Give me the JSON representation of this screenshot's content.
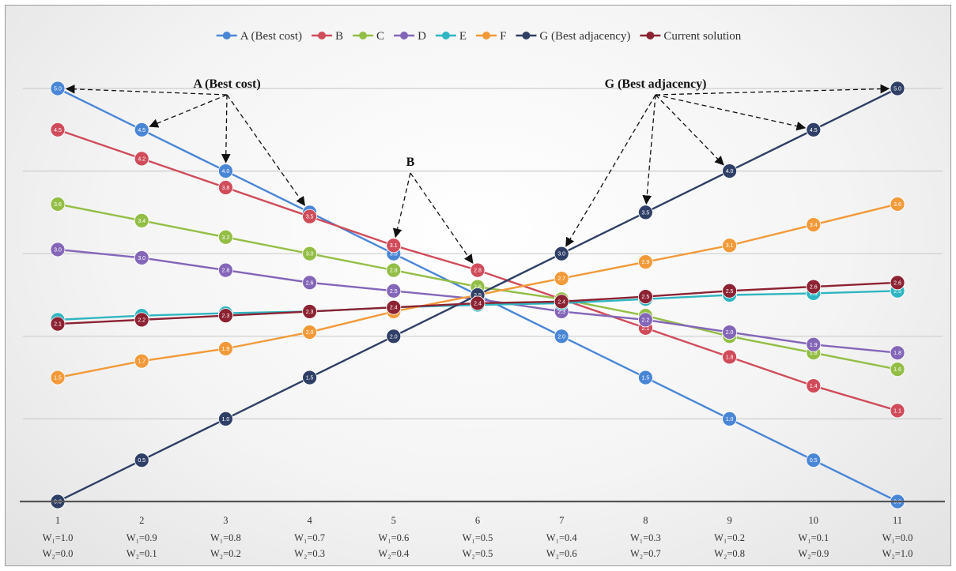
{
  "chart_data": {
    "type": "line",
    "title": "",
    "xlabel": "",
    "ylabel": "",
    "categories": [
      "1",
      "2",
      "3",
      "4",
      "5",
      "6",
      "7",
      "8",
      "9",
      "10",
      "11"
    ],
    "weights": [
      {
        "w1": "W₁=1.0",
        "w2": "W₂=0.0"
      },
      {
        "w1": "W₁=0.9",
        "w2": "W₂=0.1"
      },
      {
        "w1": "W₁=0.8",
        "w2": "W₂=0.2"
      },
      {
        "w1": "W₁=0.7",
        "w2": "W₂=0.3"
      },
      {
        "w1": "W₁=0.6",
        "w2": "W₂=0.4"
      },
      {
        "w1": "W₁=0.5",
        "w2": "W₂=0.5"
      },
      {
        "w1": "W₁=0.4",
        "w2": "W₂=0.6"
      },
      {
        "w1": "W₁=0.3",
        "w2": "W₂=0.7"
      },
      {
        "w1": "W₁=0.2",
        "w2": "W₂=0.8"
      },
      {
        "w1": "W₁=0.1",
        "w2": "W₂=0.9"
      },
      {
        "w1": "W₁=0.0",
        "w2": "W₂=1.0"
      }
    ],
    "ylim": [
      0,
      5
    ],
    "grid": true,
    "legend_position": "top",
    "series": [
      {
        "name": "A (Best cost)",
        "color": "#4a86d6",
        "values": [
          5.0,
          4.5,
          4.0,
          3.5,
          3.0,
          2.5,
          2.0,
          1.5,
          1.0,
          0.5,
          0.0
        ]
      },
      {
        "name": "B",
        "color": "#d04c5a",
        "values": [
          4.5,
          4.15,
          3.8,
          3.45,
          3.1,
          2.8,
          2.45,
          2.1,
          1.75,
          1.4,
          1.1
        ]
      },
      {
        "name": "C",
        "color": "#93be46",
        "values": [
          3.6,
          3.4,
          3.2,
          3.0,
          2.8,
          2.6,
          2.45,
          2.25,
          2.0,
          1.8,
          1.6
        ]
      },
      {
        "name": "D",
        "color": "#8466b8",
        "values": [
          3.05,
          2.95,
          2.8,
          2.65,
          2.55,
          2.45,
          2.3,
          2.2,
          2.05,
          1.9,
          1.8
        ]
      },
      {
        "name": "E",
        "color": "#2fb6c2",
        "values": [
          2.2,
          2.25,
          2.28,
          2.3,
          2.35,
          2.38,
          2.4,
          2.45,
          2.5,
          2.52,
          2.55
        ]
      },
      {
        "name": "F",
        "color": "#f29a3a",
        "values": [
          1.5,
          1.7,
          1.85,
          2.05,
          2.3,
          2.5,
          2.7,
          2.9,
          3.1,
          3.35,
          3.6
        ]
      },
      {
        "name": "G (Best adjacency)",
        "color": "#2f3f66",
        "values": [
          0.0,
          0.5,
          1.0,
          1.5,
          2.0,
          2.5,
          3.0,
          3.5,
          4.0,
          4.5,
          5.0
        ]
      },
      {
        "name": "Current solution",
        "color": "#8c2232",
        "values": [
          2.15,
          2.2,
          2.25,
          2.3,
          2.35,
          2.4,
          2.42,
          2.48,
          2.55,
          2.6,
          2.65
        ]
      }
    ],
    "annotations": [
      {
        "label": "A (Best cost)",
        "series": "A (Best cost)",
        "points": [
          1,
          2,
          3,
          4
        ]
      },
      {
        "label": "B",
        "series": "B",
        "points": [
          5,
          6
        ]
      },
      {
        "label": "G (Best adjacency)",
        "series": "G (Best adjacency)",
        "points": [
          7,
          8,
          9,
          10,
          11
        ]
      }
    ]
  }
}
